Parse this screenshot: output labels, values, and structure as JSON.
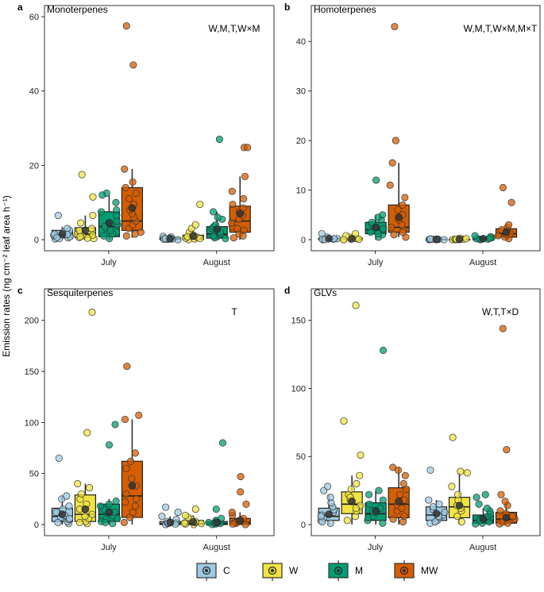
{
  "chart_data": {
    "type": "boxplot",
    "y_label": "Emission rates (ng cm⁻² leaf area h⁻¹)",
    "groups": [
      "July",
      "August"
    ],
    "treatments": [
      {
        "key": "C",
        "name": "C",
        "color": "#9ecae1"
      },
      {
        "key": "W",
        "name": "W",
        "color": "#f0e442"
      },
      {
        "key": "M",
        "name": "M",
        "color": "#009e73"
      },
      {
        "key": "MW",
        "name": "MW",
        "color": "#d55e00"
      }
    ],
    "panels": [
      {
        "letter": "a",
        "title": "Monoterpenes",
        "annotation": "W,M,T,W×M",
        "ylim": [
          0,
          60
        ],
        "yticks": [
          0,
          20,
          40,
          60
        ],
        "boxes": [
          {
            "group": "July",
            "treatment": "C",
            "q1": 0.5,
            "median": 1.2,
            "q3": 2.5,
            "lower": 0.0,
            "upper": 3.5,
            "mean": 1.5,
            "points": [
              0.2,
              0.5,
              0.8,
              1.0,
              1.2,
              1.5,
              1.8,
              2.0,
              2.5,
              3.0,
              0.3,
              0.6,
              6.5,
              1.4
            ]
          },
          {
            "group": "July",
            "treatment": "W",
            "q1": 0.6,
            "median": 1.5,
            "q3": 3.2,
            "lower": 0.0,
            "upper": 6.5,
            "mean": 2.5,
            "points": [
              0.3,
              0.6,
              1.0,
              1.5,
              2.0,
              2.5,
              3.0,
              0.8,
              1.2,
              4.5,
              6.5,
              11.5,
              17.5,
              0.4
            ]
          },
          {
            "group": "July",
            "treatment": "M",
            "q1": 0.8,
            "median": 3.5,
            "q3": 7.5,
            "lower": 0.0,
            "upper": 12.0,
            "mean": 4.5,
            "points": [
              0.3,
              1.0,
              2.0,
              3.0,
              4.0,
              5.0,
              6.5,
              7.5,
              8.0,
              10.0,
              12.5,
              12.0,
              1.5,
              2.5,
              3.5
            ]
          },
          {
            "group": "July",
            "treatment": "MW",
            "q1": 2.5,
            "median": 5.0,
            "q3": 14.0,
            "lower": 0.5,
            "upper": 19.0,
            "mean": 8.5,
            "points": [
              1.0,
              2.0,
              3.0,
              4.0,
              5.0,
              6.0,
              7.0,
              8.0,
              9.5,
              11.0,
              12.5,
              14.0,
              15.5,
              19.0,
              47.0,
              57.5,
              1.5
            ]
          },
          {
            "group": "August",
            "treatment": "C",
            "q1": 0.05,
            "median": 0.2,
            "q3": 0.5,
            "lower": 0.0,
            "upper": 1.0,
            "mean": 0.3,
            "points": [
              0.0,
              0.1,
              0.2,
              0.3,
              0.4,
              0.5,
              0.7,
              0.9,
              0.1,
              0.2,
              0.3
            ]
          },
          {
            "group": "August",
            "treatment": "W",
            "q1": 0.1,
            "median": 0.4,
            "q3": 1.2,
            "lower": 0.0,
            "upper": 2.5,
            "mean": 1.0,
            "points": [
              0.0,
              0.2,
              0.4,
              0.6,
              1.0,
              1.5,
              2.0,
              0.3,
              0.8,
              3.0,
              4.0,
              9.5
            ]
          },
          {
            "group": "August",
            "treatment": "M",
            "q1": 0.4,
            "median": 1.5,
            "q3": 3.5,
            "lower": 0.0,
            "upper": 7.5,
            "mean": 2.8,
            "points": [
              0.3,
              0.8,
              1.5,
              2.0,
              3.0,
              3.5,
              4.0,
              5.5,
              6.0,
              7.5,
              0.5,
              1.0,
              27.0
            ]
          },
          {
            "group": "August",
            "treatment": "MW",
            "q1": 2.0,
            "median": 5.0,
            "q3": 9.0,
            "lower": 0.0,
            "upper": 17.0,
            "mean": 7.0,
            "points": [
              0.5,
              1.5,
              2.5,
              3.5,
              4.5,
              5.5,
              6.5,
              7.5,
              8.5,
              9.5,
              11.0,
              13.0,
              17.0,
              24.8,
              24.8,
              1.0,
              3.0
            ]
          }
        ]
      },
      {
        "letter": "b",
        "title": "Homoterpenes",
        "annotation": "W,M,T,W×M,M×T",
        "ylim": [
          0,
          45
        ],
        "yticks": [
          0,
          10,
          20,
          30,
          40
        ],
        "boxes": [
          {
            "group": "July",
            "treatment": "C",
            "q1": 0.0,
            "median": 0.1,
            "q3": 0.3,
            "lower": 0.0,
            "upper": 0.6,
            "mean": 0.2,
            "points": [
              0.0,
              0.1,
              0.2,
              0.3,
              0.5,
              1.2,
              0.1,
              0.0,
              0.2
            ]
          },
          {
            "group": "July",
            "treatment": "W",
            "q1": 0.0,
            "median": 0.1,
            "q3": 0.3,
            "lower": 0.0,
            "upper": 0.6,
            "mean": 0.2,
            "points": [
              0.0,
              0.1,
              0.2,
              0.3,
              0.5,
              1.2,
              0.8,
              0.0,
              0.1
            ]
          },
          {
            "group": "July",
            "treatment": "M",
            "q1": 1.2,
            "median": 2.0,
            "q3": 3.5,
            "lower": 0.0,
            "upper": 5.0,
            "mean": 2.5,
            "points": [
              0.5,
              1.0,
              1.5,
              2.0,
              2.5,
              3.0,
              3.5,
              4.0,
              4.5,
              5.0,
              12.0,
              1.2,
              2.2
            ]
          },
          {
            "group": "July",
            "treatment": "MW",
            "q1": 1.5,
            "median": 2.5,
            "q3": 7.0,
            "lower": 0.5,
            "upper": 15.5,
            "mean": 4.5,
            "points": [
              0.5,
              1.0,
              2.0,
              3.0,
              4.0,
              5.0,
              6.0,
              7.0,
              8.5,
              11.0,
              15.5,
              20.0,
              43.0,
              1.5,
              2.5
            ]
          },
          {
            "group": "August",
            "treatment": "C",
            "q1": 0.0,
            "median": 0.05,
            "q3": 0.1,
            "lower": 0.0,
            "upper": 0.2,
            "mean": 0.05,
            "points": [
              0.0,
              0.05,
              0.1,
              0.0,
              0.1,
              0.05,
              0.15
            ]
          },
          {
            "group": "August",
            "treatment": "W",
            "q1": 0.0,
            "median": 0.05,
            "q3": 0.1,
            "lower": 0.0,
            "upper": 0.2,
            "mean": 0.05,
            "points": [
              0.0,
              0.05,
              0.1,
              0.0,
              0.3,
              0.1,
              0.2
            ]
          },
          {
            "group": "August",
            "treatment": "M",
            "q1": 0.0,
            "median": 0.1,
            "q3": 0.3,
            "lower": 0.0,
            "upper": 0.6,
            "mean": 0.2,
            "points": [
              0.0,
              0.1,
              0.2,
              0.4,
              0.6,
              0.8,
              0.1,
              0.3
            ]
          },
          {
            "group": "August",
            "treatment": "MW",
            "q1": 0.5,
            "median": 1.2,
            "q3": 2.2,
            "lower": 0.0,
            "upper": 3.0,
            "mean": 1.5,
            "points": [
              0.2,
              0.5,
              1.0,
              1.5,
              2.0,
              2.5,
              3.0,
              7.5,
              10.5,
              1.2,
              0.8
            ]
          }
        ]
      },
      {
        "letter": "c",
        "title": "Sesquiterpenes",
        "annotation": "T",
        "ylim": [
          0,
          220
        ],
        "yticks": [
          0,
          50,
          100,
          150,
          200
        ],
        "boxes": [
          {
            "group": "July",
            "treatment": "C",
            "q1": 3.0,
            "median": 8.0,
            "q3": 16.0,
            "lower": 0.0,
            "upper": 28.0,
            "mean": 10.0,
            "points": [
              1.0,
              3.0,
              5.0,
              7.0,
              9.0,
              12.0,
              15.0,
              18.0,
              25.0,
              28.0,
              65.0,
              2.0,
              6.0
            ]
          },
          {
            "group": "July",
            "treatment": "W",
            "q1": 3.0,
            "median": 10.0,
            "q3": 29.0,
            "lower": 0.0,
            "upper": 40.0,
            "mean": 15.0,
            "points": [
              1.0,
              3.0,
              6.0,
              10.0,
              15.0,
              20.0,
              25.0,
              30.0,
              36.0,
              40.0,
              90.0,
              208.0,
              2.0,
              8.0
            ]
          },
          {
            "group": "July",
            "treatment": "M",
            "q1": 3.0,
            "median": 10.0,
            "q3": 20.0,
            "lower": 0.0,
            "upper": 25.0,
            "mean": 12.0,
            "points": [
              1.0,
              3.0,
              6.0,
              9.0,
              12.0,
              15.0,
              18.0,
              20.0,
              23.0,
              78.0,
              98.0,
              5.0,
              2.0
            ]
          },
          {
            "group": "July",
            "treatment": "MW",
            "q1": 7.0,
            "median": 28.0,
            "q3": 62.0,
            "lower": 0.0,
            "upper": 103.0,
            "mean": 38.0,
            "points": [
              2.0,
              7.0,
              12.0,
              18.0,
              25.0,
              30.0,
              38.0,
              45.0,
              55.0,
              62.0,
              70.0,
              103.0,
              107.0,
              155.0,
              22.0
            ]
          },
          {
            "group": "August",
            "treatment": "C",
            "q1": 0.0,
            "median": 1.0,
            "q3": 3.0,
            "lower": 0.0,
            "upper": 8.0,
            "mean": 2.0,
            "points": [
              0.0,
              1.0,
              2.0,
              3.0,
              5.0,
              8.0,
              12.0,
              17.0,
              0.5,
              1.5
            ]
          },
          {
            "group": "August",
            "treatment": "W",
            "q1": 0.0,
            "median": 1.0,
            "q3": 4.0,
            "lower": 0.0,
            "upper": 9.0,
            "mean": 2.5,
            "points": [
              0.0,
              1.0,
              2.0,
              3.0,
              5.0,
              7.0,
              9.0,
              15.0,
              0.5,
              1.5
            ]
          },
          {
            "group": "August",
            "treatment": "M",
            "q1": 0.0,
            "median": 1.0,
            "q3": 3.0,
            "lower": 0.0,
            "upper": 6.0,
            "mean": 2.0,
            "points": [
              0.0,
              1.0,
              2.0,
              3.0,
              4.0,
              6.0,
              15.0,
              80.0,
              0.5,
              1.5
            ]
          },
          {
            "group": "August",
            "treatment": "MW",
            "q1": 0.0,
            "median": 2.0,
            "q3": 6.0,
            "lower": 0.0,
            "upper": 12.0,
            "mean": 4.0,
            "points": [
              0.0,
              1.0,
              2.0,
              4.0,
              6.0,
              9.0,
              12.0,
              20.0,
              32.0,
              47.0,
              0.5,
              3.0
            ]
          }
        ]
      },
      {
        "letter": "d",
        "title": "GLVs",
        "annotation": "W,T,T×D",
        "ylim": [
          0,
          165
        ],
        "yticks": [
          0,
          50,
          100,
          150
        ],
        "boxes": [
          {
            "group": "July",
            "treatment": "C",
            "q1": 3.0,
            "median": 6.0,
            "q3": 12.0,
            "lower": 0.0,
            "upper": 22.0,
            "mean": 7.5,
            "points": [
              1.0,
              3.0,
              5.0,
              7.0,
              9.0,
              11.0,
              13.0,
              16.0,
              20.0,
              25.0,
              28.0,
              2.0,
              6.0
            ]
          },
          {
            "group": "July",
            "treatment": "W",
            "q1": 8.0,
            "median": 15.0,
            "q3": 24.0,
            "lower": 0.0,
            "upper": 36.0,
            "mean": 17.0,
            "points": [
              3.0,
              6.0,
              10.0,
              14.0,
              18.0,
              22.0,
              26.0,
              30.0,
              36.0,
              51.0,
              76.0,
              161.0,
              12.0,
              20.0
            ]
          },
          {
            "group": "July",
            "treatment": "M",
            "q1": 3.0,
            "median": 8.0,
            "q3": 16.0,
            "lower": 0.0,
            "upper": 25.0,
            "mean": 10.0,
            "points": [
              1.0,
              3.0,
              6.0,
              9.0,
              12.0,
              15.0,
              18.0,
              22.0,
              25.0,
              128.0,
              5.0,
              10.0
            ]
          },
          {
            "group": "July",
            "treatment": "MW",
            "q1": 5.0,
            "median": 15.0,
            "q3": 27.0,
            "lower": 0.0,
            "upper": 42.0,
            "mean": 17.0,
            "points": [
              2.0,
              6.0,
              10.0,
              14.0,
              18.0,
              22.0,
              26.0,
              30.0,
              36.0,
              42.0,
              40.0,
              12.0,
              4.0
            ]
          },
          {
            "group": "August",
            "treatment": "C",
            "q1": 3.0,
            "median": 7.0,
            "q3": 13.0,
            "lower": 0.0,
            "upper": 18.0,
            "mean": 8.0,
            "points": [
              1.0,
              3.0,
              5.0,
              7.0,
              9.0,
              11.0,
              13.0,
              15.0,
              18.0,
              40.0,
              2.0,
              6.0
            ]
          },
          {
            "group": "August",
            "treatment": "W",
            "q1": 5.0,
            "median": 13.0,
            "q3": 20.0,
            "lower": 0.0,
            "upper": 38.0,
            "mean": 14.0,
            "points": [
              2.0,
              6.0,
              10.0,
              14.0,
              18.0,
              22.0,
              28.0,
              38.0,
              39.0,
              64.0,
              12.0
            ]
          },
          {
            "group": "August",
            "treatment": "M",
            "q1": 1.0,
            "median": 3.0,
            "q3": 7.0,
            "lower": 0.0,
            "upper": 12.0,
            "mean": 4.0,
            "points": [
              0.5,
              2.0,
              4.0,
              6.0,
              8.0,
              10.0,
              12.0,
              15.0,
              20.0,
              22.0,
              1.0,
              3.0
            ]
          },
          {
            "group": "August",
            "treatment": "MW",
            "q1": 1.0,
            "median": 4.0,
            "q3": 9.0,
            "lower": 0.0,
            "upper": 17.0,
            "mean": 5.0,
            "points": [
              0.5,
              2.0,
              4.0,
              6.0,
              8.0,
              10.0,
              14.0,
              17.0,
              22.0,
              55.0,
              144.0,
              1.0
            ]
          }
        ]
      }
    ]
  }
}
